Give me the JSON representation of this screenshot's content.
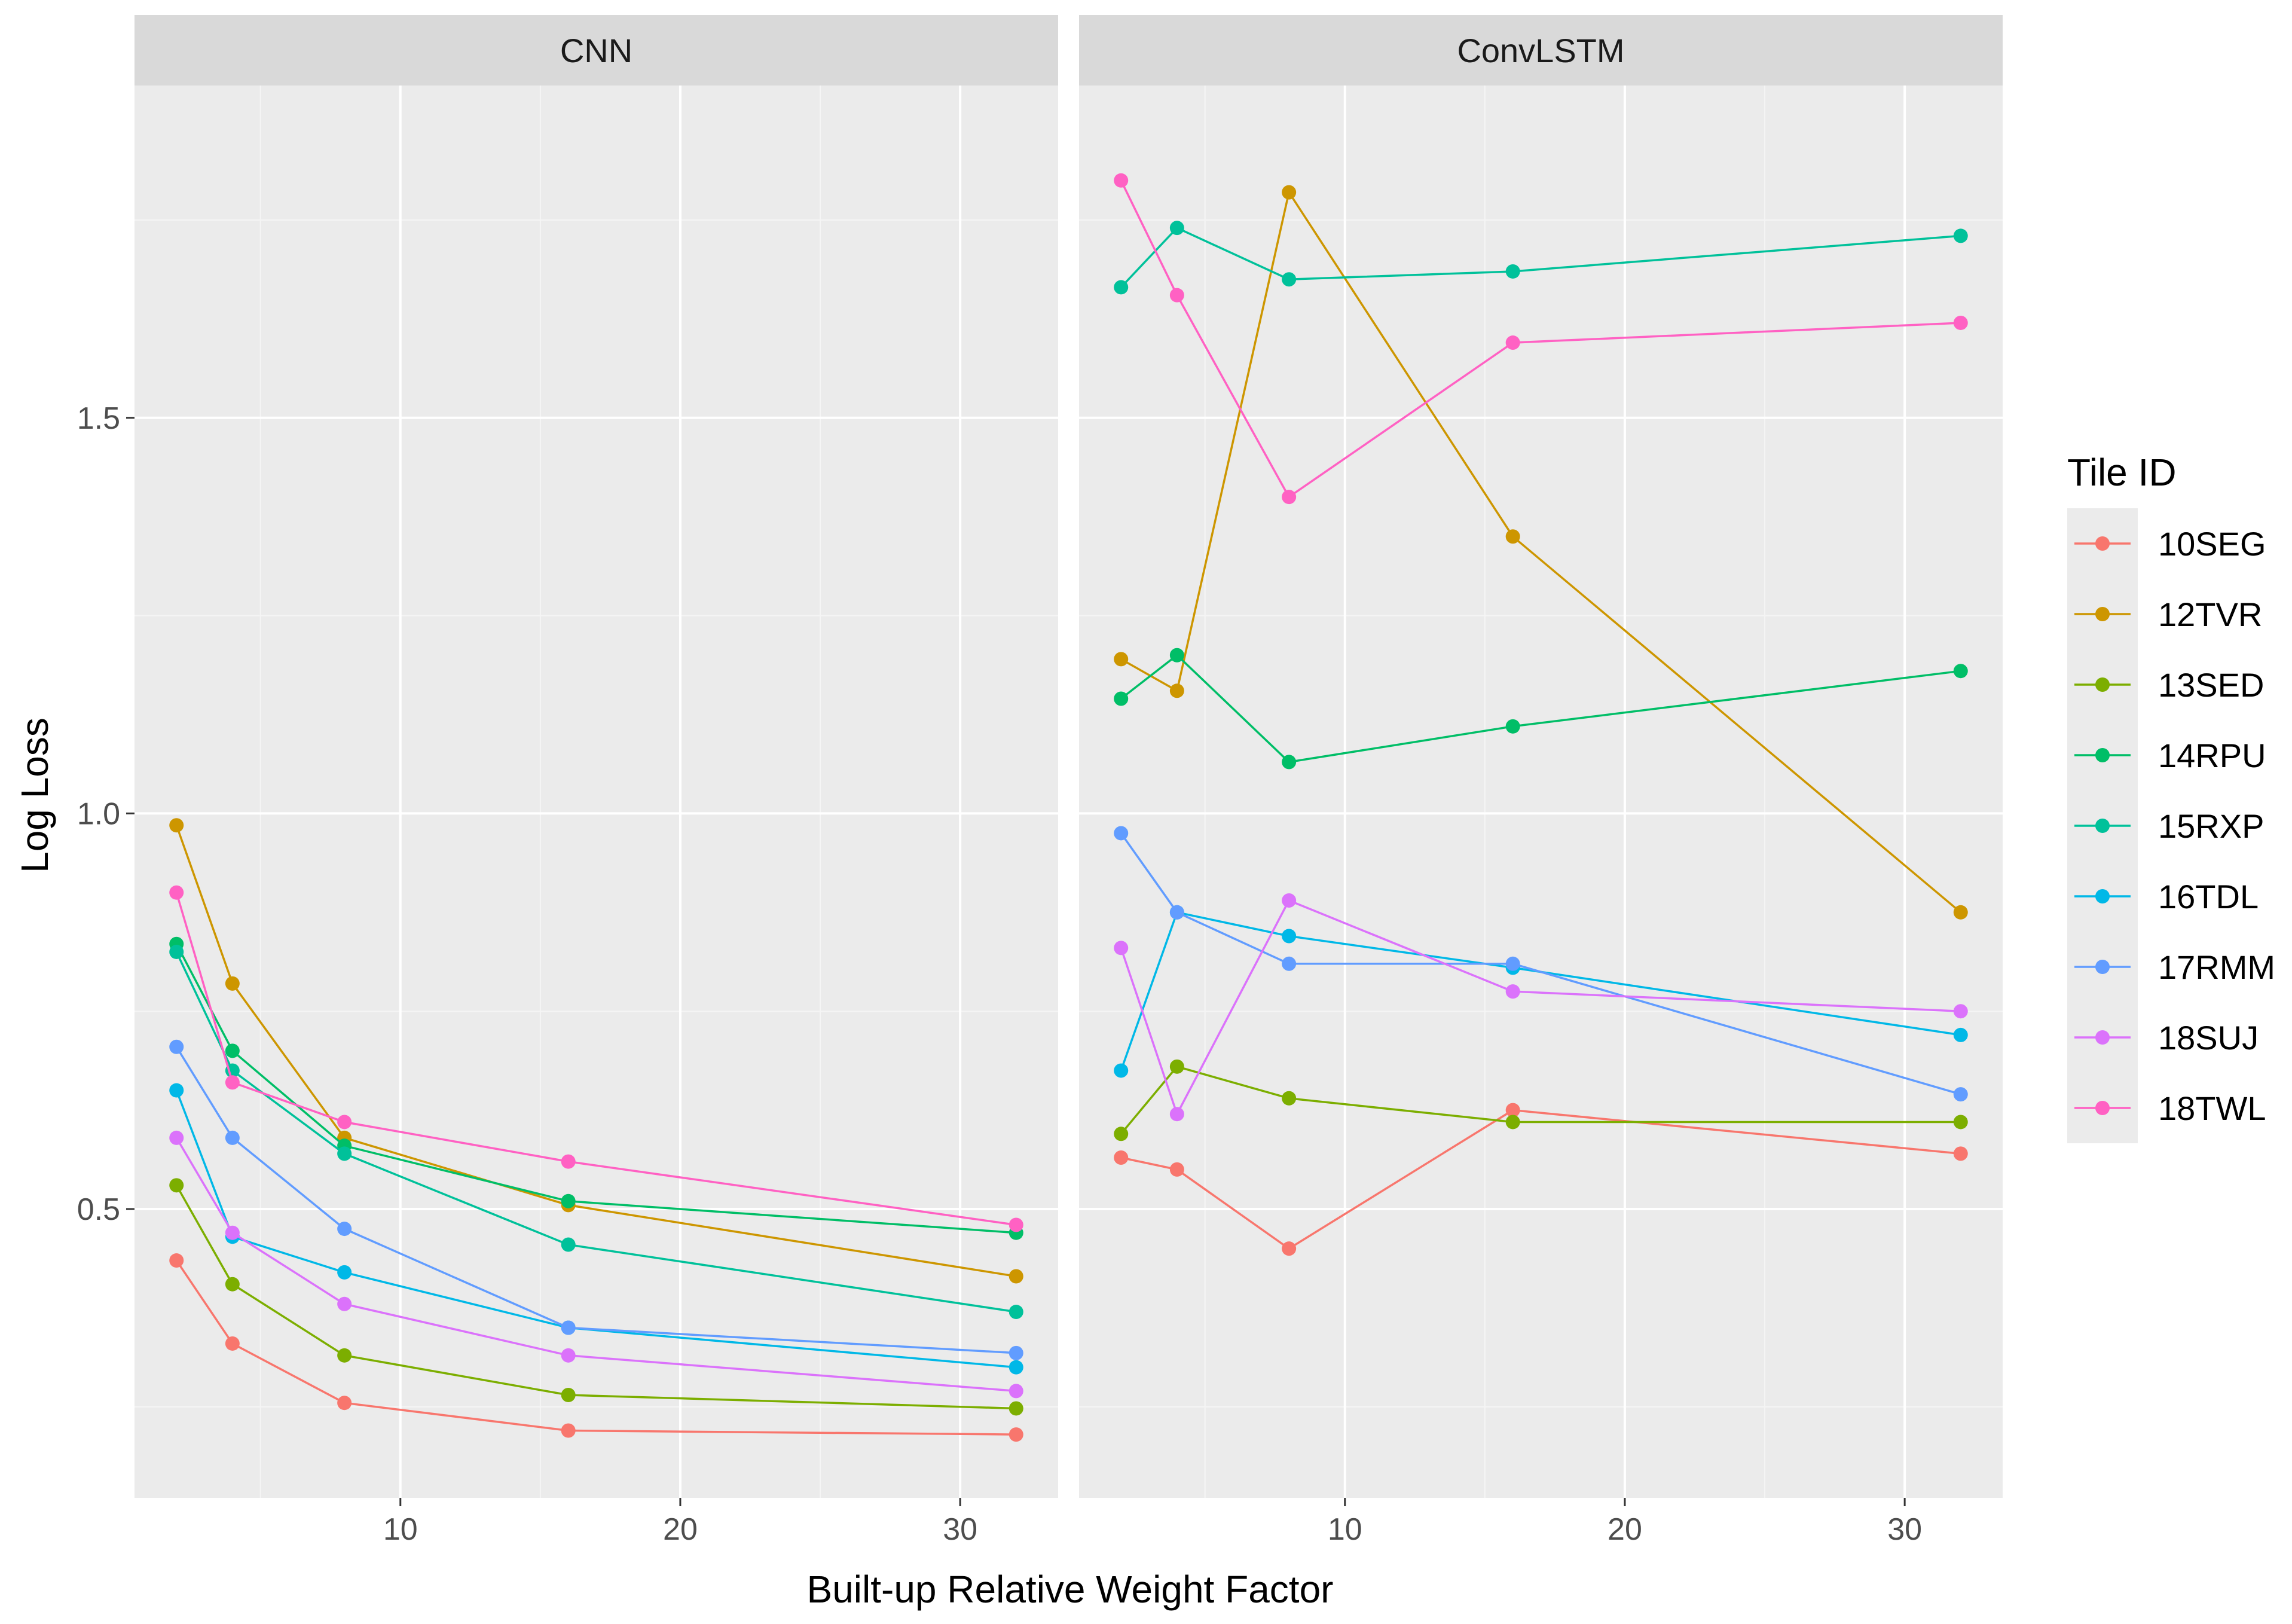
{
  "chart_data": {
    "type": "line",
    "xlabel": "Built-up Relative Weight Factor",
    "ylabel": "Log Loss",
    "xlim": [
      0.5,
      33.5
    ],
    "ylim": [
      0.135,
      1.92
    ],
    "x_ticks": [
      10,
      20,
      30
    ],
    "y_ticks": [
      0.5,
      1.0,
      1.5
    ],
    "grid": true,
    "legend": {
      "title": "Tile ID",
      "position": "right"
    },
    "panels": [
      {
        "name": "CNN",
        "x": [
          2,
          4,
          8,
          16,
          32
        ],
        "series": [
          {
            "name": "10SEG",
            "color": "#F8766D",
            "values": [
              0.435,
              0.33,
              0.255,
              0.22,
              0.215
            ]
          },
          {
            "name": "12TVR",
            "color": "#CD9600",
            "values": [
              0.985,
              0.785,
              0.59,
              0.505,
              0.415
            ]
          },
          {
            "name": "13SED",
            "color": "#7CAE00",
            "values": [
              0.53,
              0.405,
              0.315,
              0.265,
              0.248
            ]
          },
          {
            "name": "14RPU",
            "color": "#00BE67",
            "values": [
              0.835,
              0.7,
              0.58,
              0.51,
              0.47
            ]
          },
          {
            "name": "15RXP",
            "color": "#00C19A",
            "values": [
              0.825,
              0.675,
              0.57,
              0.455,
              0.37
            ]
          },
          {
            "name": "16TDL",
            "color": "#00B8E7",
            "values": [
              0.65,
              0.465,
              0.42,
              0.35,
              0.3
            ]
          },
          {
            "name": "17RMM",
            "color": "#619CFF",
            "values": [
              0.705,
              0.59,
              0.475,
              0.35,
              0.318
            ]
          },
          {
            "name": "18SUJ",
            "color": "#DB72FB",
            "values": [
              0.59,
              0.47,
              0.38,
              0.315,
              0.27
            ]
          },
          {
            "name": "18TWL",
            "color": "#FF61C3",
            "values": [
              0.9,
              0.66,
              0.61,
              0.56,
              0.48
            ]
          }
        ]
      },
      {
        "name": "ConvLSTM",
        "x": [
          2,
          4,
          8,
          16,
          32
        ],
        "series": [
          {
            "name": "10SEG",
            "color": "#F8766D",
            "values": [
              0.565,
              0.55,
              0.45,
              0.625,
              0.57
            ]
          },
          {
            "name": "12TVR",
            "color": "#CD9600",
            "values": [
              1.195,
              1.155,
              1.785,
              1.35,
              0.875
            ]
          },
          {
            "name": "13SED",
            "color": "#7CAE00",
            "values": [
              0.595,
              0.68,
              0.64,
              0.61,
              0.61
            ]
          },
          {
            "name": "14RPU",
            "color": "#00BE67",
            "values": [
              1.145,
              1.2,
              1.065,
              1.11,
              1.18
            ]
          },
          {
            "name": "15RXP",
            "color": "#00C19A",
            "values": [
              1.665,
              1.74,
              1.675,
              1.685,
              1.73
            ]
          },
          {
            "name": "16TDL",
            "color": "#00B8E7",
            "values": [
              0.675,
              0.875,
              0.845,
              0.805,
              0.72
            ]
          },
          {
            "name": "17RMM",
            "color": "#619CFF",
            "values": [
              0.975,
              0.875,
              0.81,
              0.81,
              0.645
            ]
          },
          {
            "name": "18SUJ",
            "color": "#DB72FB",
            "values": [
              0.83,
              0.62,
              0.89,
              0.775,
              0.75
            ]
          },
          {
            "name": "18TWL",
            "color": "#FF61C3",
            "values": [
              1.8,
              1.655,
              1.4,
              1.595,
              1.62
            ]
          }
        ]
      }
    ]
  }
}
